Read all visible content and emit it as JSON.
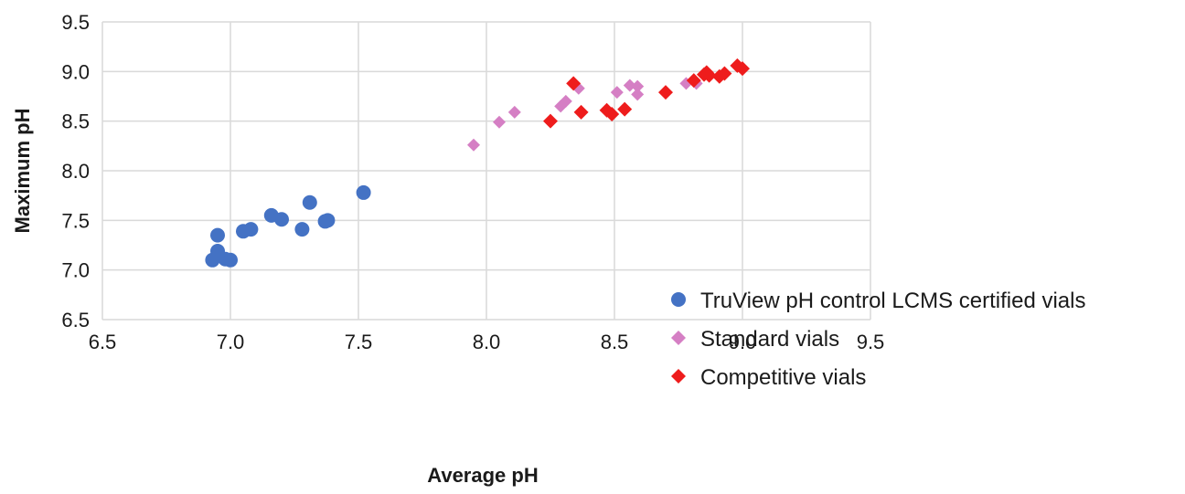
{
  "chart_data": {
    "type": "scatter",
    "title": "",
    "xlabel": "Average pH",
    "ylabel": "Maximum pH",
    "xlim": [
      6.5,
      9.5
    ],
    "ylim": [
      6.5,
      9.5
    ],
    "x_ticks": [
      "6.5",
      "7.0",
      "7.5",
      "8.0",
      "8.5",
      "9.0",
      "9.5"
    ],
    "y_ticks": [
      "6.5",
      "7.0",
      "7.5",
      "8.0",
      "8.5",
      "9.0",
      "9.5"
    ],
    "grid": true,
    "legend_position": "bottom-right",
    "series": [
      {
        "name": "TruView pH control LCMS certified vials",
        "marker": "circle",
        "color": "#4472c4",
        "points": [
          [
            6.93,
            7.1
          ],
          [
            6.95,
            7.35
          ],
          [
            6.95,
            7.19
          ],
          [
            6.98,
            7.11
          ],
          [
            7.0,
            7.1
          ],
          [
            7.05,
            7.39
          ],
          [
            7.08,
            7.41
          ],
          [
            7.16,
            7.55
          ],
          [
            7.2,
            7.51
          ],
          [
            7.28,
            7.41
          ],
          [
            7.31,
            7.68
          ],
          [
            7.37,
            7.49
          ],
          [
            7.38,
            7.5
          ],
          [
            7.52,
            7.78
          ]
        ]
      },
      {
        "name": "Standard vials",
        "marker": "diamond",
        "color": "#d57fc4",
        "points": [
          [
            7.95,
            8.26
          ],
          [
            8.05,
            8.49
          ],
          [
            8.11,
            8.59
          ],
          [
            8.29,
            8.65
          ],
          [
            8.31,
            8.7
          ],
          [
            8.36,
            8.83
          ],
          [
            8.51,
            8.79
          ],
          [
            8.56,
            8.86
          ],
          [
            8.59,
            8.85
          ],
          [
            8.59,
            8.77
          ],
          [
            8.78,
            8.88
          ],
          [
            8.82,
            8.88
          ]
        ]
      },
      {
        "name": "Competitive vials",
        "marker": "diamond",
        "color": "#ee1c1c",
        "points": [
          [
            8.25,
            8.5
          ],
          [
            8.34,
            8.88
          ],
          [
            8.37,
            8.59
          ],
          [
            8.47,
            8.61
          ],
          [
            8.49,
            8.57
          ],
          [
            8.54,
            8.62
          ],
          [
            8.7,
            8.79
          ],
          [
            8.81,
            8.91
          ],
          [
            8.85,
            8.97
          ],
          [
            8.87,
            8.96
          ],
          [
            8.86,
            8.99
          ],
          [
            8.91,
            8.95
          ],
          [
            8.93,
            8.98
          ],
          [
            8.98,
            9.06
          ],
          [
            9.0,
            9.03
          ]
        ]
      }
    ]
  }
}
